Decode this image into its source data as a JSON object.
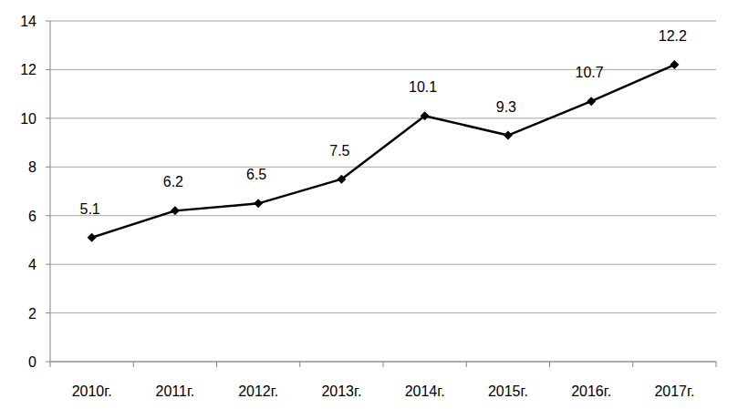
{
  "chart_data": {
    "type": "line",
    "categories": [
      "2010г.",
      "2011г.",
      "2012г.",
      "2013г.",
      "2014г.",
      "2015г.",
      "2016г.",
      "2017г."
    ],
    "values": [
      5.1,
      6.2,
      6.5,
      7.5,
      10.1,
      9.3,
      10.7,
      12.2
    ],
    "color": "#000000",
    "marker": "diamond",
    "ylim": [
      0,
      14
    ],
    "yticks": [
      0,
      2,
      4,
      6,
      8,
      10,
      12,
      14
    ],
    "grid": true,
    "data_labels": true
  }
}
